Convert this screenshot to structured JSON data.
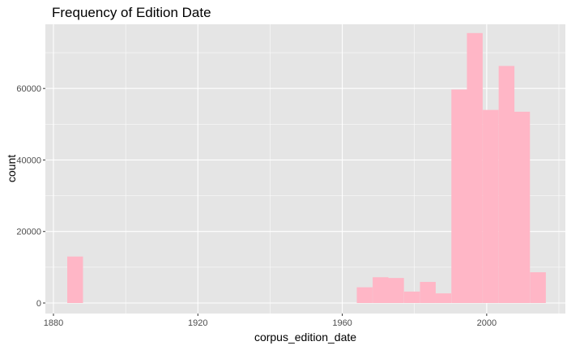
{
  "chart_data": {
    "type": "bar",
    "title": "Frequency of Edition Date",
    "xlabel": "corpus_edition_date",
    "ylabel": "count",
    "xlim": [
      1880,
      2020
    ],
    "ylim": [
      0,
      75000
    ],
    "x_ticks": [
      1880,
      1920,
      1960,
      2000
    ],
    "y_ticks": [
      0,
      20000,
      40000,
      60000
    ],
    "x_tick_labels": [
      "1880",
      "1920",
      "1960",
      "2000"
    ],
    "y_tick_labels": [
      "0",
      "20000",
      "40000",
      "60000"
    ],
    "bin_width": 4.36,
    "bins": [
      {
        "x": 1886.0,
        "count": 13000
      },
      {
        "x": 1966.2,
        "count": 4400
      },
      {
        "x": 1970.6,
        "count": 7200
      },
      {
        "x": 1974.9,
        "count": 7000
      },
      {
        "x": 1979.3,
        "count": 3200
      },
      {
        "x": 1983.7,
        "count": 5900
      },
      {
        "x": 1988.0,
        "count": 2700
      },
      {
        "x": 1992.4,
        "count": 59700
      },
      {
        "x": 1996.7,
        "count": 75500
      },
      {
        "x": 2001.1,
        "count": 54000
      },
      {
        "x": 2005.5,
        "count": 66300
      },
      {
        "x": 2009.8,
        "count": 53500
      },
      {
        "x": 2014.2,
        "count": 8600
      }
    ],
    "grid": true,
    "legend": "none",
    "colors": {
      "panel": "#e5e5e5",
      "grid_major": "#ffffff",
      "bar": "#ffb6c6"
    }
  }
}
